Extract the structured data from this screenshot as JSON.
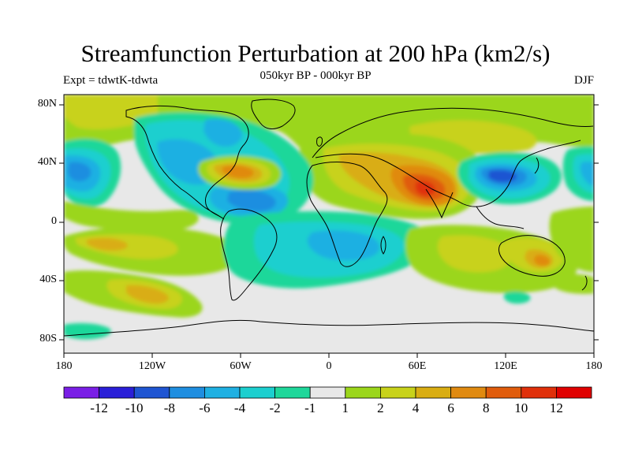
{
  "title": "Streamfunction Perturbation at 200 hPa (km2/s)",
  "subtitle": "050kyr BP - 000kyr BP",
  "left_note": "Expt = tdwtK-tdwta",
  "right_note": "DJF",
  "lat_labels": [
    "80N",
    "40N",
    "0",
    "40S",
    "80S"
  ],
  "lon_labels": [
    "180",
    "120W",
    "60W",
    "0",
    "60E",
    "120E",
    "180"
  ],
  "colorbar": {
    "colors": [
      "#7a1ee6",
      "#2a1fd8",
      "#1f55d2",
      "#1f8ee0",
      "#1fb0e2",
      "#1ccfcf",
      "#1ed79a",
      "#e8e8e8",
      "#9bd61b",
      "#c8d21a",
      "#d9ad12",
      "#e08a10",
      "#e05c0c",
      "#e0300a",
      "#e00000"
    ],
    "labels": [
      "-12",
      "-10",
      "-8",
      "-6",
      "-4",
      "-2",
      "-1",
      "1",
      "2",
      "4",
      "6",
      "8",
      "10",
      "12"
    ]
  },
  "colors": {
    "neutral": "#e8e8e8",
    "green": "#9bd61b",
    "yellow": "#c8d21a",
    "gold": "#d9ad12",
    "orange": "#e08a10",
    "darkorange": "#e05c0c",
    "red": "#e0300a",
    "teal": "#1ed79a",
    "cyan": "#1ccfcf",
    "lightblue": "#1fb0e2",
    "blue": "#1f8ee0",
    "deepblue": "#1f55d2"
  }
}
